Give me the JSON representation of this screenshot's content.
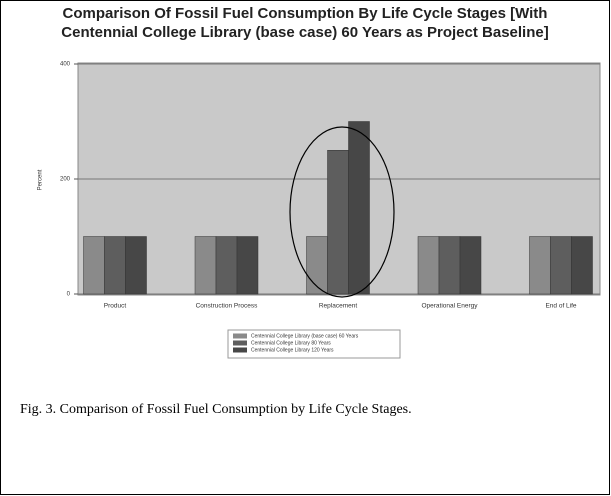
{
  "chart_data": {
    "type": "bar",
    "title": [
      "Comparison Of Fossil Fuel Consumption By Life Cycle Stages [With",
      "Centennial College Library (base case) 60 Years as Project Baseline]"
    ],
    "y_label": "Percent",
    "categories": [
      "Product",
      "Construction Process",
      "Replacement",
      "Operational Energy",
      "End of Life"
    ],
    "series": [
      {
        "name": "Centennial College Library (base case) 60 Years",
        "color": "#8a8a8a",
        "values": [
          100,
          100,
          100,
          100,
          100
        ]
      },
      {
        "name": "Centennial College Library 80 Years",
        "color": "#5e5e5e",
        "values": [
          100,
          100,
          250,
          100,
          100
        ]
      },
      {
        "name": "Centennial College Library 120 Years",
        "color": "#474747",
        "values": [
          100,
          100,
          300,
          100,
          100
        ]
      }
    ],
    "ylim": [
      0,
      400
    ],
    "yticks": [
      0,
      200,
      400
    ],
    "grid": true
  },
  "caption": "Fig. 3. Comparison of Fossil Fuel Consumption by Life Cycle Stages."
}
